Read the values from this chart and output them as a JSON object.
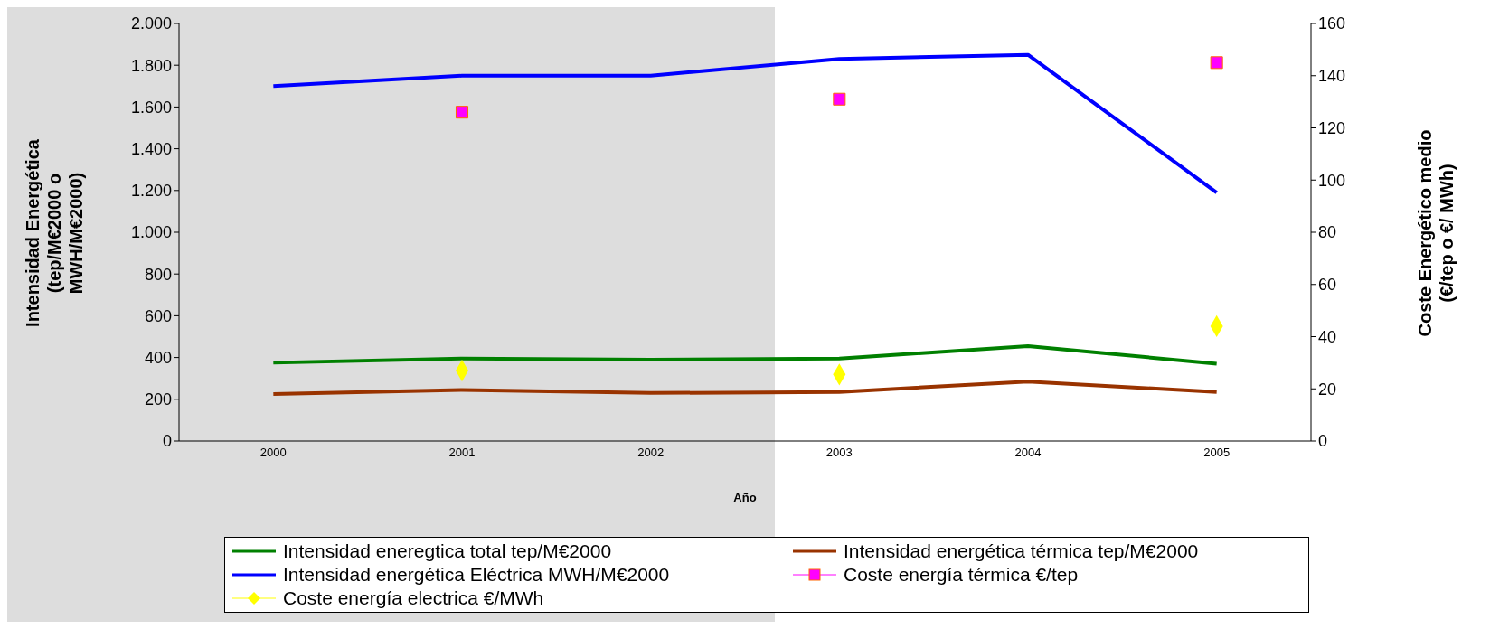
{
  "chart_data": {
    "type": "line",
    "xlabel": "Año",
    "ylabel": "Intensidad Energética (tep/M€2000 o MWH/M€2000)",
    "y2label": "Coste Energético medio (€/tep o €/ MWh)",
    "categories": [
      "2000",
      "2001",
      "2002",
      "2003",
      "2004",
      "2005"
    ],
    "series": [
      {
        "name": "Intensidad eneregtica total tep/M€2000",
        "color": "#008000",
        "values": [
          375,
          395,
          390,
          395,
          455,
          370
        ]
      },
      {
        "name": "Intensidad energética térmica tep/M€2000",
        "color": "#993300",
        "values": [
          225,
          245,
          230,
          235,
          285,
          235
        ]
      },
      {
        "name": "Intensidad energética Eléctrica MWH/M€2000",
        "color": "#0000ff",
        "values": [
          1700,
          1750,
          1750,
          1830,
          1850,
          1190
        ]
      },
      {
        "name": "Coste energía térmica €/tep",
        "type": "scatter",
        "marker": "square",
        "axis": "y2",
        "color": "#ff00ff",
        "values": [
          null,
          126,
          null,
          131,
          null,
          145
        ]
      },
      {
        "name": "Coste energía electrica €/MWh",
        "type": "scatter",
        "marker": "diamond",
        "axis": "y2",
        "color": "#ffff00",
        "values": [
          null,
          27,
          null,
          25.5,
          null,
          44
        ]
      }
    ],
    "ylim": [
      0,
      2000
    ],
    "yticks": [
      0,
      {
        "value": 200,
        "label": "200"
      },
      {
        "value": 400,
        "label": "400"
      },
      {
        "value": 600,
        "label": "600"
      },
      {
        "value": 800,
        "label": "800"
      },
      {
        "value": 1000,
        "label": "1.000"
      },
      {
        "value": 1200,
        "label": "1.200"
      },
      {
        "value": 1400,
        "label": "1.400"
      },
      {
        "value": 1600,
        "label": "1.600"
      },
      {
        "value": 1800,
        "label": "1.800"
      },
      {
        "value": 2000,
        "label": "2.000"
      }
    ],
    "y2lim": [
      0,
      160
    ],
    "y2ticks": [
      0,
      20,
      40,
      60,
      80,
      100,
      120,
      140,
      160
    ],
    "grid": false,
    "legend": "bottom",
    "marker": "none",
    "line_style": "solid"
  }
}
